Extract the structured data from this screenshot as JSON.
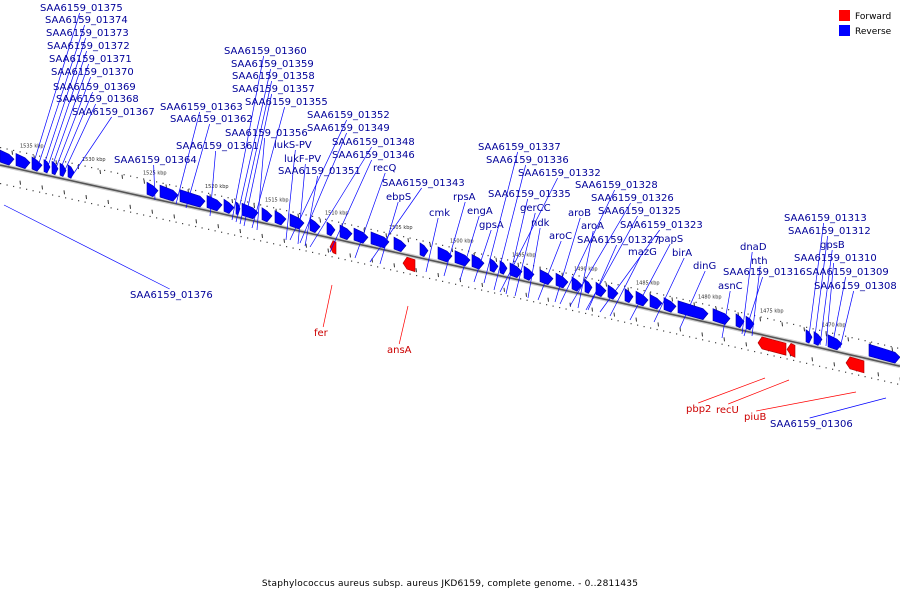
{
  "caption": "Staphylococcus aureus subsp. aureus JKD6159, complete genome. - 0..2811435",
  "legend": [
    {
      "name": "Forward",
      "color": "#ff0000"
    },
    {
      "name": "Reverse",
      "color": "#0000ff"
    }
  ],
  "colors": {
    "forward": "#ff0000",
    "reverse": "#0000ff",
    "backbone": "#888888",
    "forward_label": "#cc0000",
    "reverse_label": "#000099"
  },
  "ticks": [
    "1535 kbp",
    "1530 kbp",
    "1525 kbp",
    "1520 kbp",
    "1515 kbp",
    "1510 kbp",
    "1505 kbp",
    "1500 kbp",
    "1495 kbp",
    "1490 kbp",
    "1485 kbp",
    "1480 kbp",
    "1475 kbp",
    "1470 kbp"
  ],
  "reverse_genes": [
    "SAA6159_01375",
    "SAA6159_01374",
    "SAA6159_01373",
    "SAA6159_01372",
    "SAA6159_01371",
    "SAA6159_01370",
    "SAA6159_01369",
    "SAA6159_01368",
    "SAA6159_01367",
    "SAA6159_01364",
    "SAA6159_01363",
    "SAA6159_01362",
    "SAA6159_01361",
    "SAA6159_01360",
    "SAA6159_01359",
    "SAA6159_01358",
    "SAA6159_01357",
    "SAA6159_01355",
    "SAA6159_01356",
    "SAA6159_01352",
    "SAA6159_01349",
    "lukS-PV",
    "SAA6159_01348",
    "lukF-PV",
    "SAA6159_01346",
    "SAA6159_01351",
    "recQ",
    "SAA6159_01343",
    "ebpS",
    "cmk",
    "rpsA",
    "engA",
    "gpsA",
    "SAA6159_01337",
    "SAA6159_01336",
    "SAA6159_01332",
    "SAA6159_01335",
    "gerCC",
    "ndk",
    "aroC",
    "SAA6159_01328",
    "aroB",
    "SAA6159_01326",
    "aroA",
    "SAA6159_01325",
    "SAA6159_01327",
    "SAA6159_01323",
    "mazG",
    "papS",
    "birA",
    "dinG",
    "dnaD",
    "nth",
    "asnC",
    "SAA6159_01316",
    "SAA6159_01313",
    "SAA6159_01312",
    "gpsB",
    "SAA6159_01310",
    "SAA6159_01309",
    "SAA6159_01308",
    "SAA6159_01376",
    "SAA6159_01306"
  ],
  "forward_genes": [
    "fer",
    "ansA",
    "pbp2",
    "recU",
    "piuB"
  ]
}
